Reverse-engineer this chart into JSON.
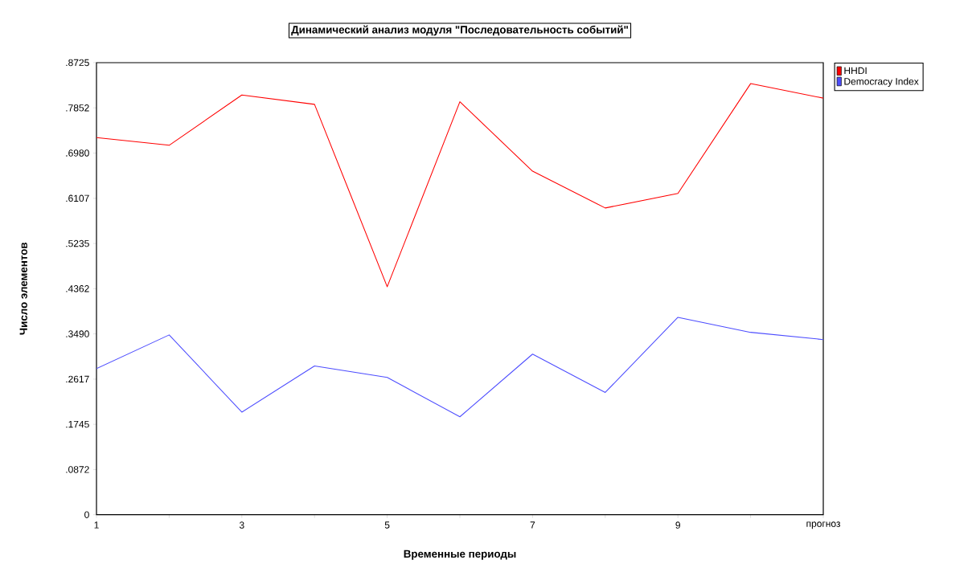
{
  "chart_data": {
    "type": "line",
    "title": "Динамический анализ модуля \"Последовательность событий\"",
    "xlabel": "Временные периоды",
    "ylabel": "Число элементов",
    "categories": [
      "1",
      null,
      "3",
      null,
      "5",
      null,
      "7",
      null,
      "9",
      null,
      "прогноз"
    ],
    "series": [
      {
        "name": "HHDI",
        "color": "#ff0000",
        "values": [
          0.728,
          0.713,
          0.81,
          0.792,
          0.44,
          0.797,
          0.663,
          0.592,
          0.62,
          0.832,
          0.804
        ]
      },
      {
        "name": "Democracy Index",
        "color": "#4d4dff",
        "values": [
          0.282,
          0.347,
          0.198,
          0.287,
          0.265,
          0.189,
          0.31,
          0.236,
          0.381,
          0.352,
          0.338
        ]
      }
    ],
    "ylim": [
      0,
      0.8725
    ],
    "yticks": [
      0,
      {
        "value": 0.0872,
        "label": ".0872"
      },
      {
        "value": 0.1745,
        "label": ".1745"
      },
      {
        "value": 0.2617,
        "label": ".2617"
      },
      {
        "value": 0.349,
        "label": ".3490"
      },
      {
        "value": 0.4362,
        "label": ".4362"
      },
      {
        "value": 0.5235,
        "label": ".5235"
      },
      {
        "value": 0.6107,
        "label": ".6107"
      },
      {
        "value": 0.698,
        "label": ".6980"
      },
      {
        "value": 0.7852,
        "label": ".7852"
      },
      {
        "value": 0.8725,
        "label": ".8725"
      }
    ],
    "grid": false,
    "legend": "top right",
    "marker": "none",
    "line_style": "solid"
  }
}
